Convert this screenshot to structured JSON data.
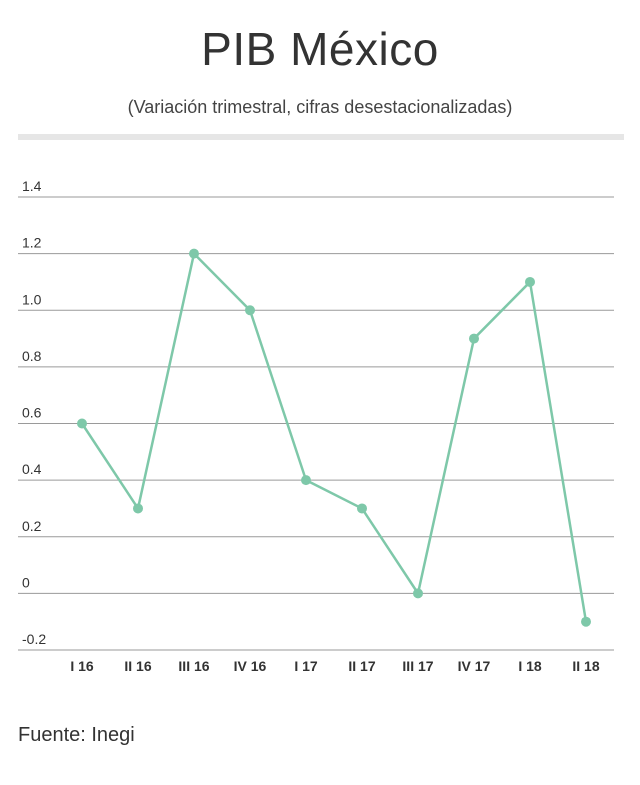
{
  "header": {
    "title": "PIB México",
    "subtitle": "(Variación trimestral, cifras desestacionalizadas)"
  },
  "footer": {
    "source": "Fuente: Inegi"
  },
  "colors": {
    "line": "#7ec8a9",
    "grid": "#9a9a9a",
    "divider": "#e6e6e6",
    "text": "#333333"
  },
  "chart_data": {
    "type": "line",
    "title": "",
    "xlabel": "",
    "ylabel": "",
    "categories": [
      "I 16",
      "II 16",
      "III 16",
      "IV 16",
      "I 17",
      "II 17",
      "III 17",
      "IV 17",
      "I 18",
      "II 18"
    ],
    "values": [
      0.6,
      0.3,
      1.2,
      1.0,
      0.4,
      0.3,
      0.0,
      0.9,
      1.1,
      -0.1
    ],
    "ylim": [
      -0.2,
      1.4
    ],
    "yticks": [
      -0.2,
      0,
      0.2,
      0.4,
      0.6,
      0.8,
      1.0,
      1.2,
      1.4
    ],
    "ytick_labels": [
      "-0.2",
      "0",
      "0.2",
      "0.4",
      "0.6",
      "0.8",
      "1.0",
      "1.2",
      "1.4"
    ],
    "grid": true,
    "legend": "none"
  }
}
